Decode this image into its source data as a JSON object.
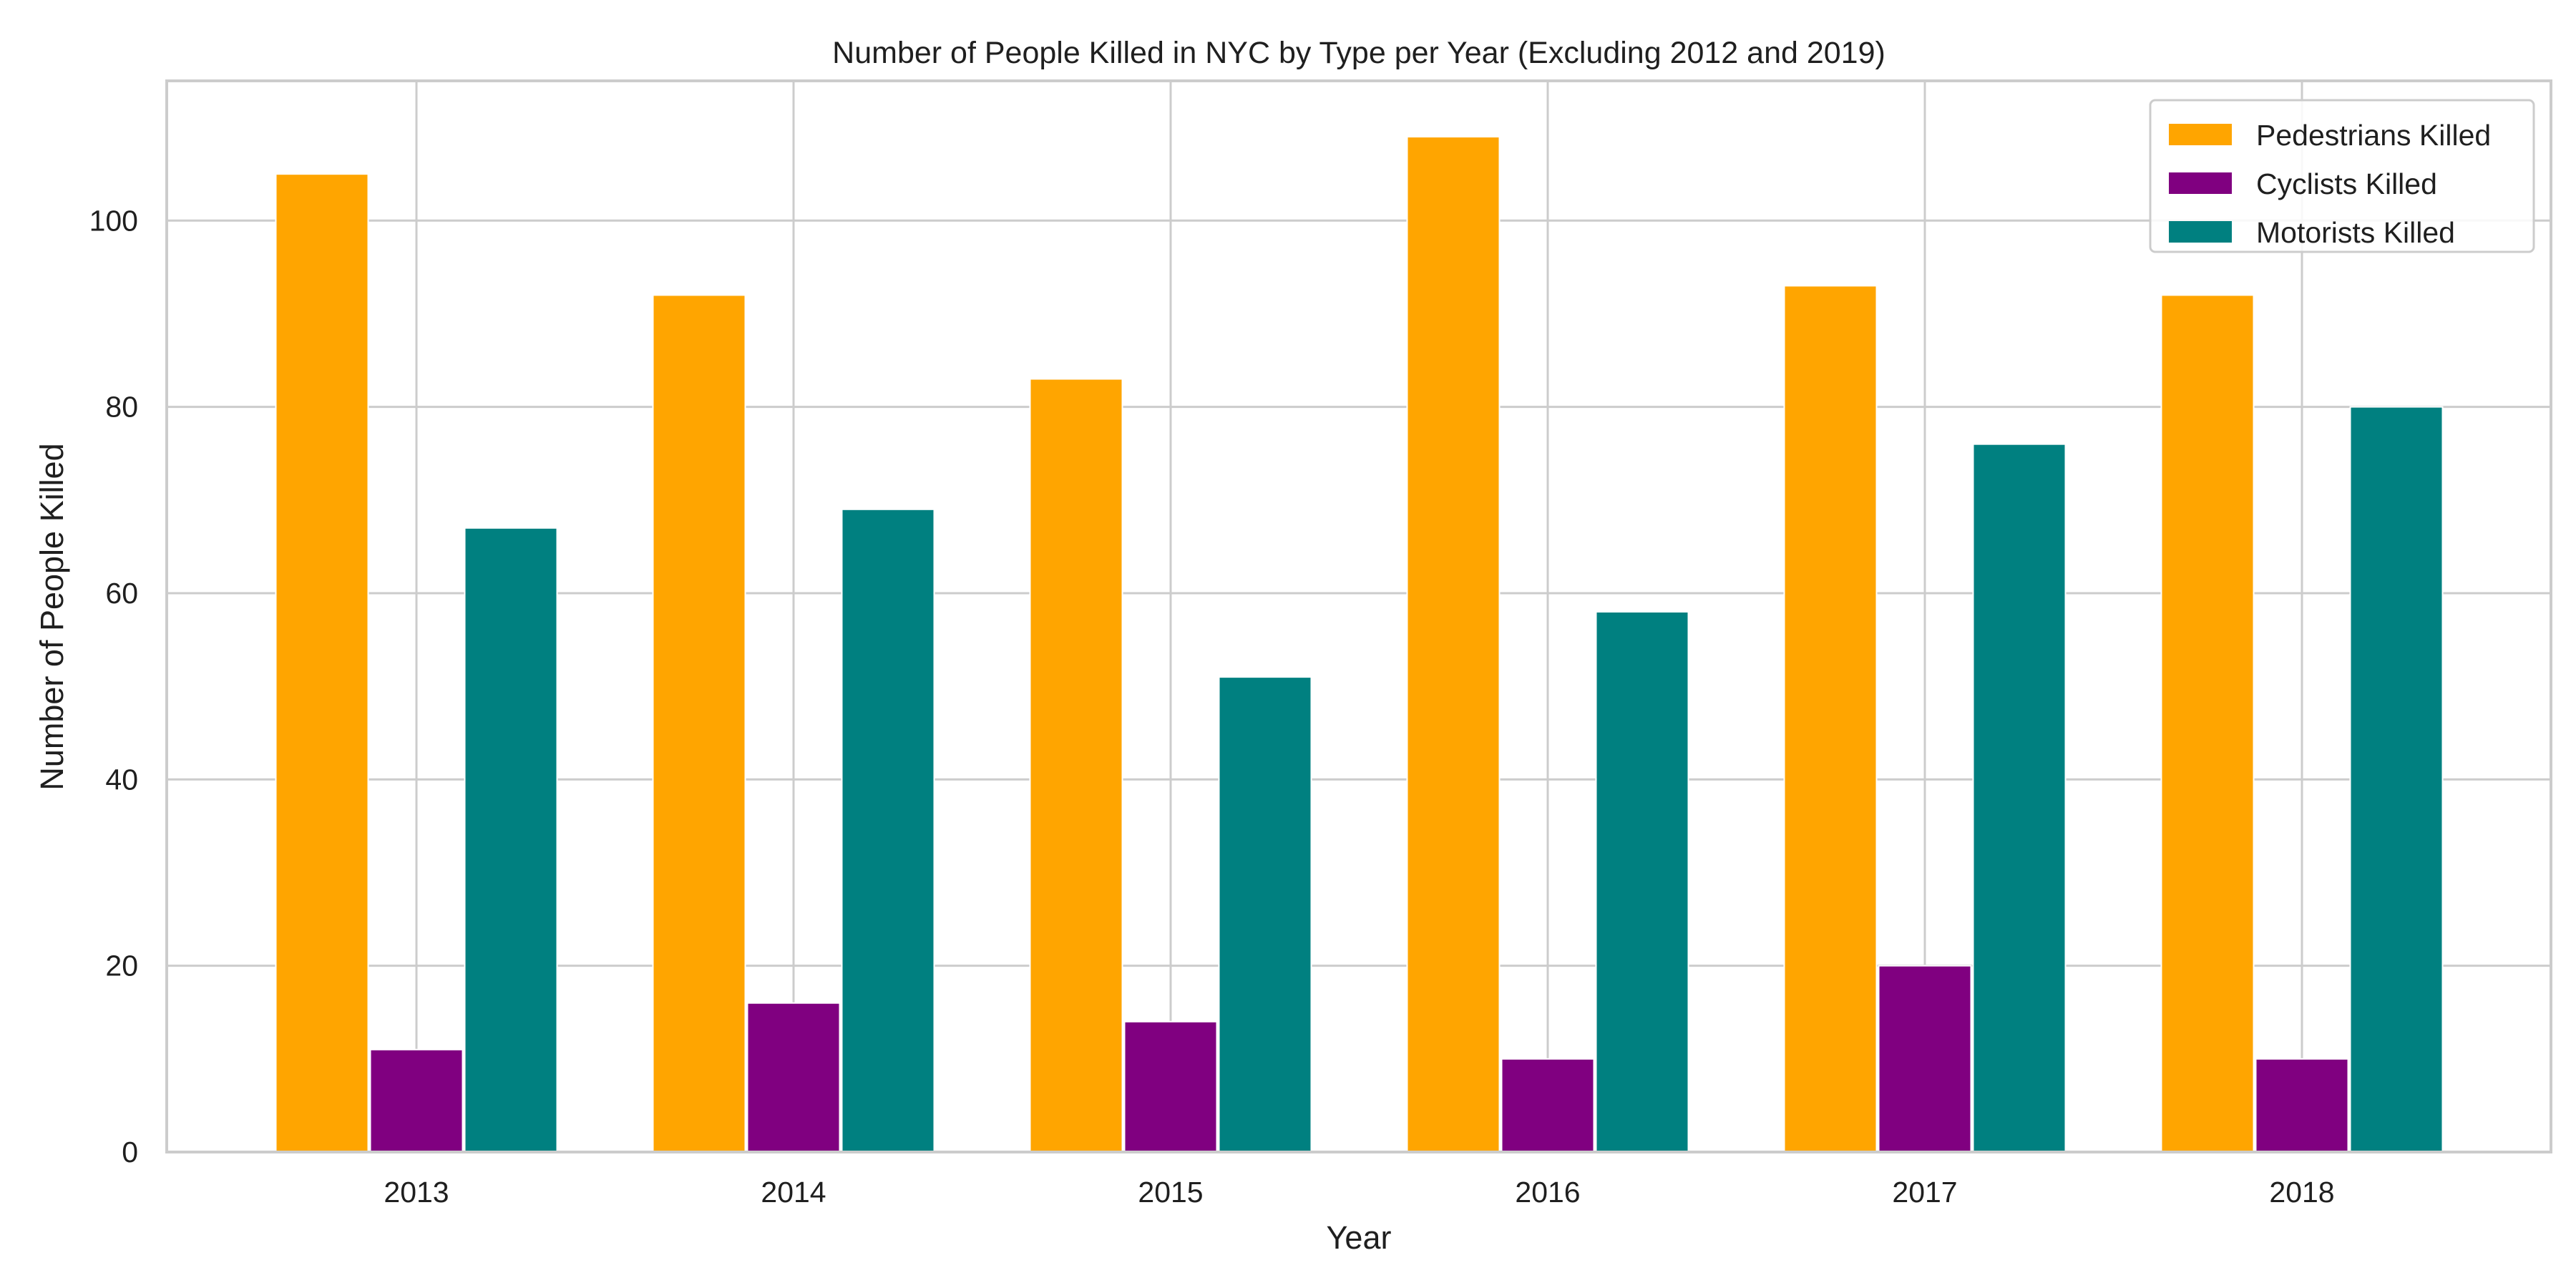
{
  "chart_data": {
    "type": "bar",
    "title": "Number of People Killed in NYC by Type per Year (Excluding 2012 and 2019)",
    "xlabel": "Year",
    "ylabel": "Number of People Killed",
    "categories": [
      "2013",
      "2014",
      "2015",
      "2016",
      "2017",
      "2018"
    ],
    "series": [
      {
        "name": "Pedestrians Killed",
        "color": "#FFA500",
        "values": [
          105,
          92,
          83,
          109,
          93,
          92
        ]
      },
      {
        "name": "Cyclists Killed",
        "color": "#800080",
        "values": [
          11,
          16,
          14,
          10,
          20,
          10
        ]
      },
      {
        "name": "Motorists Killed",
        "color": "#008080",
        "values": [
          67,
          69,
          51,
          58,
          76,
          80
        ]
      }
    ],
    "ylim": [
      0,
      115
    ],
    "yticks": [
      "0",
      "20",
      "40",
      "60",
      "80",
      "100"
    ],
    "grid": true,
    "legend_position": "top-right"
  }
}
